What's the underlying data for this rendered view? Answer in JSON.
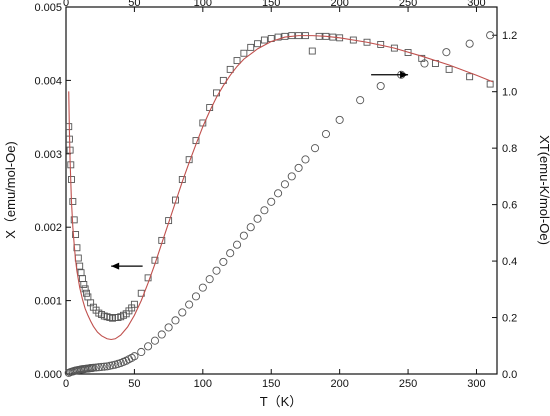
{
  "chart_data": {
    "type": "scatter",
    "title": "",
    "xlabel": "T（K）",
    "ylabel": "X（emu/mol-Oe)",
    "y2label": "XT(emu-K/mol-Oe)",
    "xlim": [
      0,
      315
    ],
    "ylim": [
      0,
      0.005
    ],
    "y2lim": [
      0,
      1.3
    ],
    "x_ticks": [
      0,
      50,
      100,
      150,
      200,
      250,
      300
    ],
    "x_tick_labels": [
      "0",
      "50",
      "100",
      "150",
      "200",
      "250",
      "300"
    ],
    "y_ticks": [
      0,
      0.001,
      0.002,
      0.003,
      0.004,
      0.005
    ],
    "y_tick_labels": [
      "0.000",
      "0.001",
      "0.002",
      "0.003",
      "0.004",
      "0.005"
    ],
    "y2_ticks": [
      0,
      0.2,
      0.4,
      0.6,
      0.8,
      1.0,
      1.2
    ],
    "y2_tick_labels": [
      "0.0",
      "0.2",
      "0.4",
      "0.6",
      "0.8",
      "1.0",
      "1.2"
    ],
    "grid": false,
    "colors": {
      "markers": "#555555",
      "fit": "#c0504d",
      "axes": "#111111"
    },
    "series": [
      {
        "marker": "square",
        "axis": "left",
        "x": [
          2,
          2.5,
          3,
          3.5,
          4,
          5,
          6,
          7,
          8,
          9,
          10,
          11,
          12,
          13,
          14,
          15,
          16,
          18,
          20,
          22,
          24,
          26,
          28,
          30,
          32,
          34,
          36,
          38,
          40,
          42,
          44,
          46,
          48,
          50,
          55,
          60,
          65,
          70,
          75,
          80,
          85,
          90,
          95,
          100,
          105,
          110,
          115,
          120,
          125,
          130,
          135,
          140,
          145,
          150,
          155,
          160,
          165,
          170,
          175,
          180,
          185,
          190,
          195,
          200,
          210,
          220,
          230,
          240,
          250,
          260,
          270,
          280,
          295,
          310
        ],
        "y": [
          0.00337,
          0.0032,
          0.00305,
          0.00285,
          0.00265,
          0.00235,
          0.0021,
          0.0019,
          0.00172,
          0.00158,
          0.00147,
          0.00138,
          0.0013,
          0.00122,
          0.00116,
          0.0011,
          0.00105,
          0.00097,
          0.00091,
          0.00087,
          0.00083,
          0.00081,
          0.00079,
          0.00078,
          0.00077,
          0.00076,
          0.00077,
          0.00077,
          0.00078,
          0.0008,
          0.00082,
          0.00086,
          0.0009,
          0.00095,
          0.0011,
          0.00131,
          0.00155,
          0.00182,
          0.00209,
          0.00237,
          0.00265,
          0.00292,
          0.00318,
          0.00342,
          0.00363,
          0.00383,
          0.004,
          0.00415,
          0.00427,
          0.00437,
          0.00445,
          0.0045,
          0.00455,
          0.00457,
          0.00459,
          0.0046,
          0.00461,
          0.00461,
          0.00461,
          0.0044,
          0.0046,
          0.0046,
          0.00459,
          0.00458,
          0.00455,
          0.00452,
          0.00449,
          0.00444,
          0.00438,
          0.0043,
          0.00423,
          0.00415,
          0.00405,
          0.00395
        ]
      },
      {
        "marker": "circle",
        "axis": "right",
        "x": [
          2,
          3,
          4,
          5,
          6,
          7,
          8,
          9,
          10,
          11,
          12,
          13,
          14,
          15,
          16,
          17,
          18,
          19,
          20,
          22,
          24,
          26,
          28,
          30,
          32,
          34,
          36,
          38,
          40,
          42,
          44,
          46,
          48,
          50,
          55,
          60,
          65,
          70,
          75,
          80,
          85,
          90,
          95,
          100,
          105,
          110,
          115,
          120,
          125,
          130,
          135,
          140,
          145,
          150,
          155,
          160,
          165,
          170,
          175,
          182,
          190,
          200,
          215,
          230,
          245,
          262,
          278,
          295,
          310
        ],
        "y": [
          0.004,
          0.006,
          0.008,
          0.009,
          0.011,
          0.012,
          0.013,
          0.014,
          0.015,
          0.016,
          0.017,
          0.017,
          0.018,
          0.019,
          0.019,
          0.02,
          0.021,
          0.021,
          0.022,
          0.023,
          0.024,
          0.025,
          0.026,
          0.027,
          0.029,
          0.031,
          0.033,
          0.036,
          0.039,
          0.043,
          0.047,
          0.052,
          0.057,
          0.063,
          0.078,
          0.098,
          0.118,
          0.14,
          0.165,
          0.19,
          0.218,
          0.246,
          0.275,
          0.306,
          0.336,
          0.366,
          0.397,
          0.428,
          0.458,
          0.49,
          0.52,
          0.55,
          0.58,
          0.61,
          0.64,
          0.672,
          0.7,
          0.73,
          0.76,
          0.8,
          0.85,
          0.9,
          0.97,
          1.02,
          1.06,
          1.1,
          1.14,
          1.17,
          1.2
        ]
      },
      {
        "type": "line",
        "axis": "left",
        "x": [
          2,
          2.5,
          3,
          4,
          5,
          6,
          7,
          8,
          10,
          12,
          14,
          16,
          18,
          20,
          23,
          26,
          30,
          33,
          36,
          40,
          45,
          50,
          55,
          60,
          65,
          70,
          75,
          80,
          85,
          90,
          95,
          100,
          105,
          110,
          115,
          120,
          125,
          130,
          140,
          150,
          160,
          170,
          180,
          190,
          200,
          220,
          240,
          260,
          280,
          300,
          312
        ],
        "y": [
          0.00385,
          0.0033,
          0.0029,
          0.00235,
          0.002,
          0.00176,
          0.00155,
          0.0014,
          0.00118,
          0.00102,
          0.00089,
          0.0008,
          0.00072,
          0.00065,
          0.00057,
          0.00052,
          0.00048,
          0.00047,
          0.00048,
          0.00053,
          0.00064,
          0.0008,
          0.001,
          0.00124,
          0.0015,
          0.00178,
          0.00206,
          0.00234,
          0.00262,
          0.00288,
          0.00313,
          0.00337,
          0.00358,
          0.00377,
          0.00393,
          0.00407,
          0.00419,
          0.00429,
          0.00443,
          0.00453,
          0.00459,
          0.00461,
          0.00461,
          0.0046,
          0.00458,
          0.00452,
          0.00444,
          0.00433,
          0.00421,
          0.00407,
          0.00398
        ]
      }
    ],
    "annotations": [
      {
        "type": "arrow",
        "direction": "left",
        "x_start": 56,
        "x_end": 33,
        "y": 0.00147,
        "axis": "left"
      },
      {
        "type": "arrow",
        "direction": "right",
        "x_start": 223,
        "x_end": 250,
        "y": 1.06,
        "axis": "right"
      }
    ]
  }
}
